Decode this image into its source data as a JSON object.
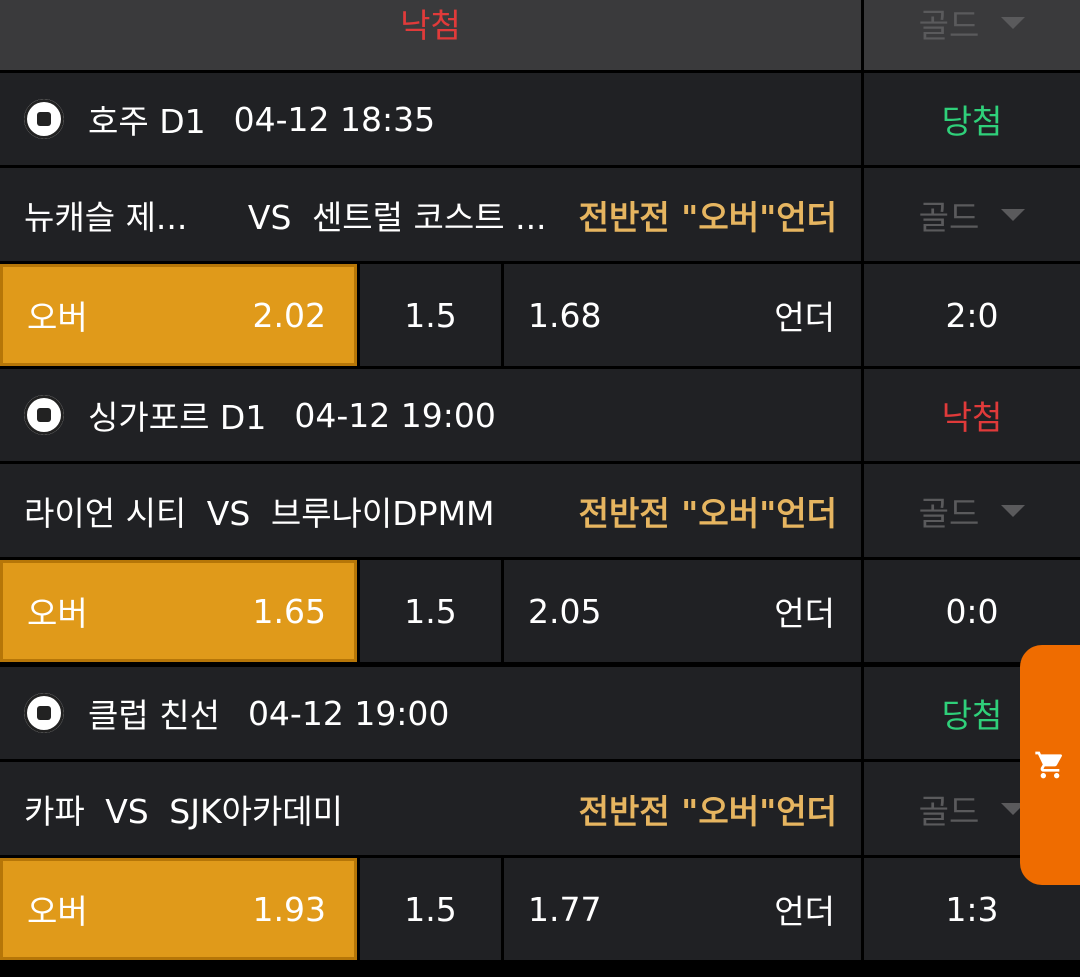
{
  "top": {
    "status": "낙첨",
    "bet_select": "골드"
  },
  "games": [
    {
      "league": "호주 D1",
      "time": "04-12 18:35",
      "result": "당첨",
      "home": "뉴캐슬 제...",
      "vs": "VS",
      "away": "센트럴 코스트 ...",
      "market": "전반전 \"오버\"언더",
      "bet_select": "골드",
      "over_label": "오버",
      "over_odds": "2.02",
      "line": "1.5",
      "under_odds": "1.68",
      "under_label": "언더",
      "score": "2:0"
    },
    {
      "league": "싱가포르 D1",
      "time": "04-12 19:00",
      "result": "낙첨",
      "home": "라이언 시티",
      "vs": "VS",
      "away": "브루나이DPMM",
      "market": "전반전 \"오버\"언더",
      "bet_select": "골드",
      "over_label": "오버",
      "over_odds": "1.65",
      "line": "1.5",
      "under_odds": "2.05",
      "under_label": "언더",
      "score": "0:0"
    },
    {
      "league": "클럽 친선",
      "time": "04-12 19:00",
      "result": "당첨",
      "home": "카파",
      "vs": "VS",
      "away": "SJK아카데미",
      "market": "전반전 \"오버\"언더",
      "bet_select": "골드",
      "over_label": "오버",
      "over_odds": "1.93",
      "line": "1.5",
      "under_odds": "1.77",
      "under_label": "언더",
      "score": "1:3"
    }
  ],
  "colors": {
    "win": "#2fd07a",
    "lose": "#e03a3a",
    "market": "#e6b560",
    "selected": "#e09a1a",
    "cart": "#ef6c00"
  },
  "cart_icon": "shopping-cart-icon"
}
